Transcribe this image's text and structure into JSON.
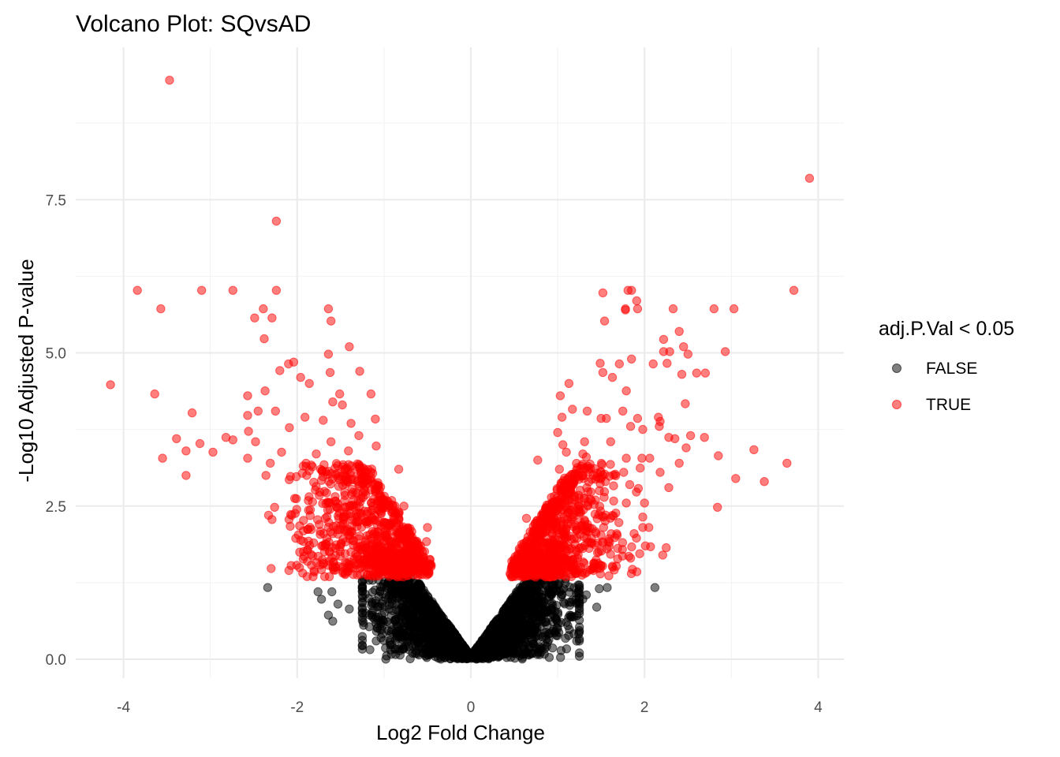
{
  "chart_data": {
    "type": "scatter",
    "title": "Volcano Plot: SQvsAD",
    "xlabel": "Log2 Fold Change",
    "ylabel": "-Log10 Adjusted P-value",
    "xlim": [
      -4.4,
      4.2
    ],
    "ylim": [
      -0.2,
      9.8
    ],
    "x_ticks": [
      -4,
      -2,
      0,
      2,
      4
    ],
    "y_ticks": [
      0.0,
      2.5,
      5.0,
      7.5
    ],
    "x_tick_labels": [
      "-4",
      "-2",
      "0",
      "2",
      "4"
    ],
    "y_tick_labels": [
      "0.0",
      "2.5",
      "5.0",
      "7.5"
    ],
    "grid": true,
    "legend": {
      "title": "adj.P.Val < 0.05",
      "placement": "right",
      "entries": [
        {
          "label": "FALSE",
          "color": "#000000"
        },
        {
          "label": "TRUE",
          "color": "#ff0000"
        }
      ]
    },
    "series": [
      {
        "name": "TRUE",
        "color": "#ff0000",
        "points": [
          [
            -3.47,
            9.45
          ],
          [
            3.9,
            7.85
          ],
          [
            -2.24,
            7.15
          ],
          [
            -3.84,
            6.02
          ],
          [
            -3.1,
            6.02
          ],
          [
            -2.74,
            6.02
          ],
          [
            -2.24,
            6.02
          ],
          [
            -3.57,
            5.72
          ],
          [
            -2.39,
            5.72
          ],
          [
            -1.64,
            5.72
          ],
          [
            -2.49,
            5.57
          ],
          [
            -2.29,
            5.57
          ],
          [
            -1.61,
            5.52
          ],
          [
            -2.38,
            5.23
          ],
          [
            -1.4,
            5.1
          ],
          [
            -1.64,
            4.98
          ],
          [
            -2.04,
            4.85
          ],
          [
            -2.1,
            4.82
          ],
          [
            -1.28,
            4.7
          ],
          [
            -2.2,
            4.71
          ],
          [
            -1.62,
            4.68
          ],
          [
            -1.96,
            4.6
          ],
          [
            -1.86,
            4.5
          ],
          [
            -4.15,
            4.48
          ],
          [
            -2.37,
            4.38
          ],
          [
            -3.64,
            4.33
          ],
          [
            -1.51,
            4.33
          ],
          [
            -1.15,
            4.33
          ],
          [
            -2.57,
            4.3
          ],
          [
            -1.59,
            4.2
          ],
          [
            -1.48,
            4.15
          ],
          [
            -2.25,
            4.05
          ],
          [
            -3.21,
            4.02
          ],
          [
            -2.45,
            4.05
          ],
          [
            -2.57,
            3.98
          ],
          [
            -1.91,
            3.95
          ],
          [
            -1.1,
            3.92
          ],
          [
            -1.7,
            3.9
          ],
          [
            -1.38,
            3.85
          ],
          [
            -2.09,
            3.78
          ],
          [
            -2.56,
            3.72
          ],
          [
            -1.29,
            3.65
          ],
          [
            -1.61,
            3.55
          ],
          [
            -2.48,
            3.55
          ],
          [
            -3.39,
            3.6
          ],
          [
            -3.12,
            3.52
          ],
          [
            -2.82,
            3.62
          ],
          [
            -2.74,
            3.58
          ],
          [
            -1.09,
            3.48
          ],
          [
            -1.41,
            3.4
          ],
          [
            -3.28,
            3.4
          ],
          [
            -2.97,
            3.38
          ],
          [
            -2.18,
            3.38
          ],
          [
            -1.78,
            3.35
          ],
          [
            -3.55,
            3.28
          ],
          [
            -2.57,
            3.28
          ],
          [
            -2.31,
            3.2
          ],
          [
            -1.73,
            3.1
          ],
          [
            -1.43,
            3.12
          ],
          [
            -0.83,
            3.1
          ],
          [
            -1.89,
            3.0
          ],
          [
            -2.01,
            2.98
          ],
          [
            -3.28,
            3.0
          ],
          [
            -2.36,
            3.0
          ],
          [
            -1.19,
            2.92
          ],
          [
            -1.07,
            2.88
          ],
          [
            -2.01,
            2.62
          ],
          [
            -1.56,
            2.58
          ],
          [
            -2.26,
            2.48
          ],
          [
            -2.33,
            2.35
          ],
          [
            -2.29,
            2.28
          ],
          [
            -1.31,
            2.25
          ],
          [
            -0.77,
            2.5
          ],
          [
            -1.88,
            2.12
          ],
          [
            -2.08,
            2.17
          ],
          [
            -0.5,
            2.15
          ],
          [
            -0.98,
            2.0
          ],
          [
            -1.81,
            1.9
          ],
          [
            -0.51,
            1.92
          ],
          [
            -1.88,
            1.78
          ],
          [
            -1.2,
            1.76
          ],
          [
            -1.92,
            1.68
          ],
          [
            -1.63,
            1.6
          ],
          [
            -2.3,
            1.48
          ],
          [
            -1.05,
            1.55
          ],
          [
            -0.68,
            1.5
          ],
          [
            -0.9,
            1.42
          ],
          [
            -1.45,
            1.4
          ],
          [
            -0.56,
            1.38
          ],
          [
            3.72,
            6.02
          ],
          [
            1.81,
            6.02
          ],
          [
            1.85,
            6.02
          ],
          [
            1.52,
            5.98
          ],
          [
            1.91,
            5.85
          ],
          [
            1.92,
            5.72
          ],
          [
            1.78,
            5.72
          ],
          [
            1.78,
            5.7
          ],
          [
            2.33,
            5.72
          ],
          [
            2.8,
            5.72
          ],
          [
            3.03,
            5.72
          ],
          [
            1.54,
            5.52
          ],
          [
            2.4,
            5.35
          ],
          [
            2.22,
            5.22
          ],
          [
            2.45,
            5.1
          ],
          [
            2.22,
            5.02
          ],
          [
            2.29,
            5.02
          ],
          [
            2.93,
            5.02
          ],
          [
            2.5,
            4.98
          ],
          [
            1.85,
            4.9
          ],
          [
            2.26,
            4.83
          ],
          [
            1.49,
            4.83
          ],
          [
            1.71,
            4.82
          ],
          [
            2.1,
            4.82
          ],
          [
            1.52,
            4.68
          ],
          [
            2.6,
            4.67
          ],
          [
            2.7,
            4.67
          ],
          [
            2.43,
            4.65
          ],
          [
            1.63,
            4.6
          ],
          [
            1.13,
            4.5
          ],
          [
            1.79,
            4.38
          ],
          [
            1.03,
            4.3
          ],
          [
            2.47,
            4.17
          ],
          [
            1.17,
            4.08
          ],
          [
            1.34,
            4.05
          ],
          [
            1.75,
            4.05
          ],
          [
            2.16,
            3.95
          ],
          [
            1.05,
            3.95
          ],
          [
            1.5,
            3.93
          ],
          [
            1.56,
            3.93
          ],
          [
            1.92,
            3.93
          ],
          [
            2.18,
            3.88
          ],
          [
            1.84,
            3.8
          ],
          [
            2.17,
            3.8
          ],
          [
            1.98,
            3.75
          ],
          [
            1.0,
            3.7
          ],
          [
            2.28,
            3.62
          ],
          [
            2.69,
            3.62
          ],
          [
            2.53,
            3.65
          ],
          [
            1.06,
            3.5
          ],
          [
            1.31,
            3.55
          ],
          [
            2.35,
            3.6
          ],
          [
            1.61,
            3.55
          ],
          [
            2.48,
            3.45
          ],
          [
            3.26,
            3.42
          ],
          [
            1.1,
            3.38
          ],
          [
            1.29,
            3.35
          ],
          [
            2.85,
            3.32
          ],
          [
            2.06,
            3.28
          ],
          [
            0.77,
            3.25
          ],
          [
            1.33,
            3.3
          ],
          [
            1.97,
            3.28
          ],
          [
            1.79,
            3.28
          ],
          [
            3.64,
            3.2
          ],
          [
            2.4,
            3.2
          ],
          [
            1.02,
            3.1
          ],
          [
            1.36,
            3.1
          ],
          [
            1.95,
            3.12
          ],
          [
            2.18,
            3.05
          ],
          [
            1.76,
            3.05
          ],
          [
            3.38,
            2.9
          ],
          [
            3.05,
            2.95
          ],
          [
            2.28,
            2.8
          ],
          [
            1.83,
            2.85
          ],
          [
            1.55,
            2.9
          ],
          [
            2.84,
            2.48
          ],
          [
            2.0,
            2.55
          ],
          [
            1.79,
            2.55
          ],
          [
            1.09,
            2.6
          ],
          [
            1.98,
            2.32
          ],
          [
            1.53,
            2.32
          ],
          [
            1.98,
            2.15
          ],
          [
            2.05,
            2.15
          ],
          [
            0.64,
            2.3
          ],
          [
            1.88,
            2.05
          ],
          [
            1.52,
            1.9
          ],
          [
            2.25,
            1.82
          ],
          [
            2.21,
            1.7
          ],
          [
            1.84,
            1.65
          ],
          [
            2.01,
            1.85
          ],
          [
            1.82,
            1.68
          ],
          [
            1.63,
            1.52
          ],
          [
            1.46,
            1.48
          ],
          [
            1.21,
            1.52
          ],
          [
            0.79,
            1.55
          ],
          [
            0.54,
            1.4
          ],
          [
            0.95,
            1.38
          ]
        ],
        "clusters": [
          {
            "cx": -1.2,
            "cy": 2.2,
            "sx": 0.4,
            "sy": 0.65,
            "count": 560
          },
          {
            "cx": -0.85,
            "cy": 1.6,
            "sx": 0.22,
            "sy": 0.2,
            "count": 320
          },
          {
            "cx": 1.0,
            "cy": 2.1,
            "sx": 0.38,
            "sy": 0.62,
            "count": 560
          },
          {
            "cx": 0.75,
            "cy": 1.55,
            "sx": 0.2,
            "sy": 0.18,
            "count": 320
          }
        ]
      },
      {
        "name": "FALSE",
        "color": "#000000",
        "points": [
          [
            -2.34,
            1.17
          ],
          [
            2.12,
            1.17
          ],
          [
            -1.76,
            1.1
          ],
          [
            -1.6,
            1.1
          ],
          [
            -1.72,
            0.98
          ],
          [
            -1.53,
            0.9
          ],
          [
            -1.4,
            0.82
          ],
          [
            -1.21,
            0.75
          ],
          [
            -1.64,
            0.72
          ],
          [
            -1.59,
            0.62
          ],
          [
            -1.02,
            0.55
          ],
          [
            -0.91,
            0.48
          ],
          [
            1.57,
            1.17
          ],
          [
            1.48,
            1.15
          ],
          [
            1.33,
            1.05
          ],
          [
            1.29,
            0.98
          ],
          [
            1.45,
            0.85
          ],
          [
            1.14,
            0.72
          ],
          [
            1.04,
            0.6
          ],
          [
            1.0,
            0.5
          ],
          [
            0.97,
            0.45
          ]
        ]
      }
    ]
  }
}
